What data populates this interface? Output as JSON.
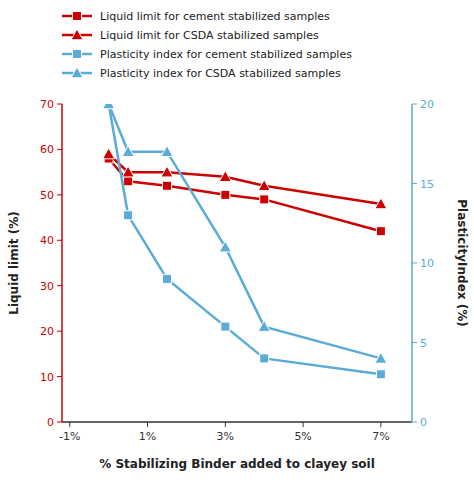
{
  "chart_data": {
    "type": "line",
    "x": [
      0,
      0.5,
      1.5,
      3.0,
      4.0,
      7.0
    ],
    "xlabel": "% Stabilizing Binder added to  clayey soil",
    "ylabel": "Liquid limit (%)",
    "y2label": "PlasticityIndex (%)",
    "xlim": [
      -1.2,
      7.8
    ],
    "xticks": [
      {
        "value": -1,
        "label": "-1%"
      },
      {
        "value": 1,
        "label": "1%"
      },
      {
        "value": 3,
        "label": "3%"
      },
      {
        "value": 5,
        "label": "5%"
      },
      {
        "value": 7,
        "label": "7%"
      }
    ],
    "ylim": [
      0,
      70
    ],
    "yticks": [
      0,
      10,
      20,
      30,
      40,
      50,
      60,
      70
    ],
    "y2lim": [
      0,
      20
    ],
    "y2ticks": [
      0,
      5,
      10,
      15,
      20
    ],
    "grid": false,
    "legend": "top",
    "series": [
      {
        "name": "Liquid limit for cement stabilized samples",
        "color": "#cc0000",
        "marker": "square",
        "axis": "y",
        "values": [
          58,
          53,
          52,
          50,
          49,
          42
        ]
      },
      {
        "name": "Liquid limit for CSDA stabilized samples",
        "color": "#cc0000",
        "marker": "triangle",
        "axis": "y",
        "values": [
          59,
          55,
          55,
          54,
          52,
          48
        ]
      },
      {
        "name": "Plasticity index for cement stabilized samples",
        "color": "#5bacd4",
        "marker": "square",
        "axis": "y2",
        "values": [
          20,
          13,
          9,
          6,
          4,
          3
        ]
      },
      {
        "name": "Plasticity index for CSDA stabilized samples",
        "color": "#5bacd4",
        "marker": "triangle",
        "axis": "y2",
        "values": [
          20,
          17,
          17,
          11,
          6,
          4
        ]
      }
    ]
  }
}
